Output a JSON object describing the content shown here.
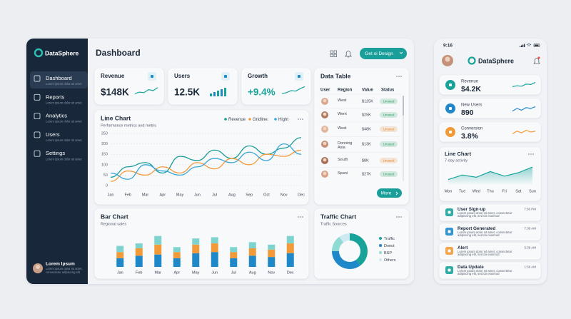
{
  "sidebar": {
    "brand": "DataSphere",
    "nav": [
      {
        "label": "Dashboard",
        "sub": "Lorem ipsum dolor sit amet"
      },
      {
        "label": "Reports",
        "sub": "Lorem ipsum dolor sit amet"
      },
      {
        "label": "Analytics",
        "sub": "Lorem ipsum dolor sit amet"
      },
      {
        "label": "Users",
        "sub": "Lorem ipsum dolor sit amet"
      },
      {
        "label": "Settings",
        "sub": "Lorem ipsum dolor sit amet"
      }
    ],
    "user": {
      "name": "Lorem Ipsum",
      "sub": "Lorem ipsum dolor sit amet, consectetur adipiscing elit"
    }
  },
  "header": {
    "title": "Dashboard",
    "button": "Get oi Design"
  },
  "kpis": [
    {
      "label": "Revenue",
      "value": "$148K",
      "color": "#1d2a3a"
    },
    {
      "label": "Users",
      "value": "12.5K",
      "color": "#1d2a3a"
    },
    {
      "label": "Growth",
      "value": "+9.4%",
      "color": "#18a39a"
    }
  ],
  "line_chart": {
    "type": "line",
    "title": "Line Chart",
    "subtitle": "Performance metrics and metris",
    "categories": [
      "Jan",
      "Feb",
      "Mar",
      "Apr",
      "May",
      "Jun",
      "Jul",
      "Aug",
      "Sep",
      "Oct",
      "Nov",
      "Dec"
    ],
    "series": [
      {
        "name": "Revenue",
        "color": "#1a9c96",
        "values": [
          40,
          90,
          110,
          60,
          140,
          120,
          170,
          130,
          190,
          150,
          180,
          230
        ]
      },
      {
        "name": "Gridline:",
        "color": "#f39a3a",
        "values": [
          20,
          70,
          50,
          90,
          60,
          110,
          80,
          130,
          100,
          150,
          140,
          170
        ]
      },
      {
        "name": "Hight",
        "color": "#3aa6d8",
        "values": [
          60,
          30,
          100,
          70,
          50,
          90,
          130,
          110,
          160,
          120,
          200,
          150
        ]
      }
    ],
    "ylim": [
      0,
      250
    ],
    "yticks": [
      0,
      50,
      100,
      150,
      200,
      250
    ],
    "grid": true
  },
  "data_table": {
    "title": "Data Table",
    "columns": [
      "User",
      "Region",
      "Value",
      "Status"
    ],
    "rows": [
      {
        "region": "West",
        "value": "$125K",
        "status": "Unused",
        "color": "#2a9d66"
      },
      {
        "region": "Went",
        "value": "$25K",
        "status": "Unused",
        "color": "#2a9d66"
      },
      {
        "region": "West",
        "value": "$48K",
        "status": "Unused",
        "color": "#e3862b"
      },
      {
        "region": "Donning Asia",
        "value": "$13K",
        "status": "Unused",
        "color": "#2a9d66"
      },
      {
        "region": "South",
        "value": "$8K",
        "status": "Unused",
        "color": "#e3862b"
      },
      {
        "region": "Spani",
        "value": "$27K",
        "status": "Unused",
        "color": "#2a9d66"
      }
    ],
    "button": "More"
  },
  "bar_chart": {
    "type": "bar",
    "stacked": true,
    "title": "Bar Chart",
    "subtitle": "Regional sales",
    "categories": [
      "Jan",
      "Feb",
      "Mar",
      "Apr",
      "May",
      "Jun",
      "Jul",
      "Aug",
      "Nov",
      "Dec"
    ],
    "series": [
      {
        "color": "#1e88c8",
        "values": [
          14,
          18,
          20,
          14,
          22,
          24,
          14,
          18,
          16,
          22
        ]
      },
      {
        "color": "#f29a38",
        "values": [
          10,
          12,
          16,
          10,
          14,
          14,
          10,
          12,
          12,
          16
        ]
      },
      {
        "color": "#7fd3cf",
        "values": [
          10,
          8,
          14,
          8,
          10,
          10,
          8,
          10,
          8,
          12
        ]
      }
    ],
    "ylim": [
      0,
      60
    ]
  },
  "traffic_chart": {
    "type": "pie",
    "donut": true,
    "title": "Traffic Chart",
    "subtitle": "Traffic Sources",
    "categories": [
      "Traffic",
      "Donut",
      "BSP",
      "Others"
    ],
    "values": [
      40,
      35,
      15,
      10
    ],
    "colors": [
      "#18a39a",
      "#1e88c8",
      "#8fdad5",
      "#cfe9f3"
    ]
  },
  "phone": {
    "time": "9:16",
    "brand": "DataSphere",
    "kpis": [
      {
        "label": "Revenue",
        "value": "$4.2K",
        "color": "#18a39a"
      },
      {
        "label": "New Users",
        "value": "890",
        "color": "#1e88c8"
      },
      {
        "label": "Conversion",
        "value": "3.8%",
        "color": "#f29a38"
      }
    ],
    "line_chart": {
      "type": "area",
      "title": "Line Chart",
      "subtitle": "7-day activity",
      "categories": [
        "Mon",
        "Tue",
        "Wed",
        "Thu",
        "Fri",
        "Sat",
        "Sun"
      ],
      "values": [
        20,
        40,
        30,
        55,
        35,
        50,
        75
      ],
      "color": "#18a39a",
      "ylim": [
        0,
        100
      ]
    },
    "activity": [
      {
        "title": "User Sign-up",
        "text": "Lorem ipsum dolor sit amet, consectetur adipiscing elit, sed do eiusmod",
        "time": "7:36 PM",
        "color": "#18a39a"
      },
      {
        "title": "Report Generated",
        "text": "Lorem ipsum dolor sit amet, consectetur adipiscing elit, sed do eiusmod",
        "time": "7:30 AM",
        "color": "#1e88c8"
      },
      {
        "title": "Alert",
        "text": "Lorem ipsum dolor sit amet, consectetur adipiscing elit, sed do eiusmod",
        "time": "5:39 AM",
        "color": "#f29a38"
      },
      {
        "title": "Data Update",
        "text": "Lorem ipsum dolor sit amet, consectetur adipiscing elit, sed do eiusmod",
        "time": "1:59 AM",
        "color": "#18a39a"
      }
    ]
  }
}
